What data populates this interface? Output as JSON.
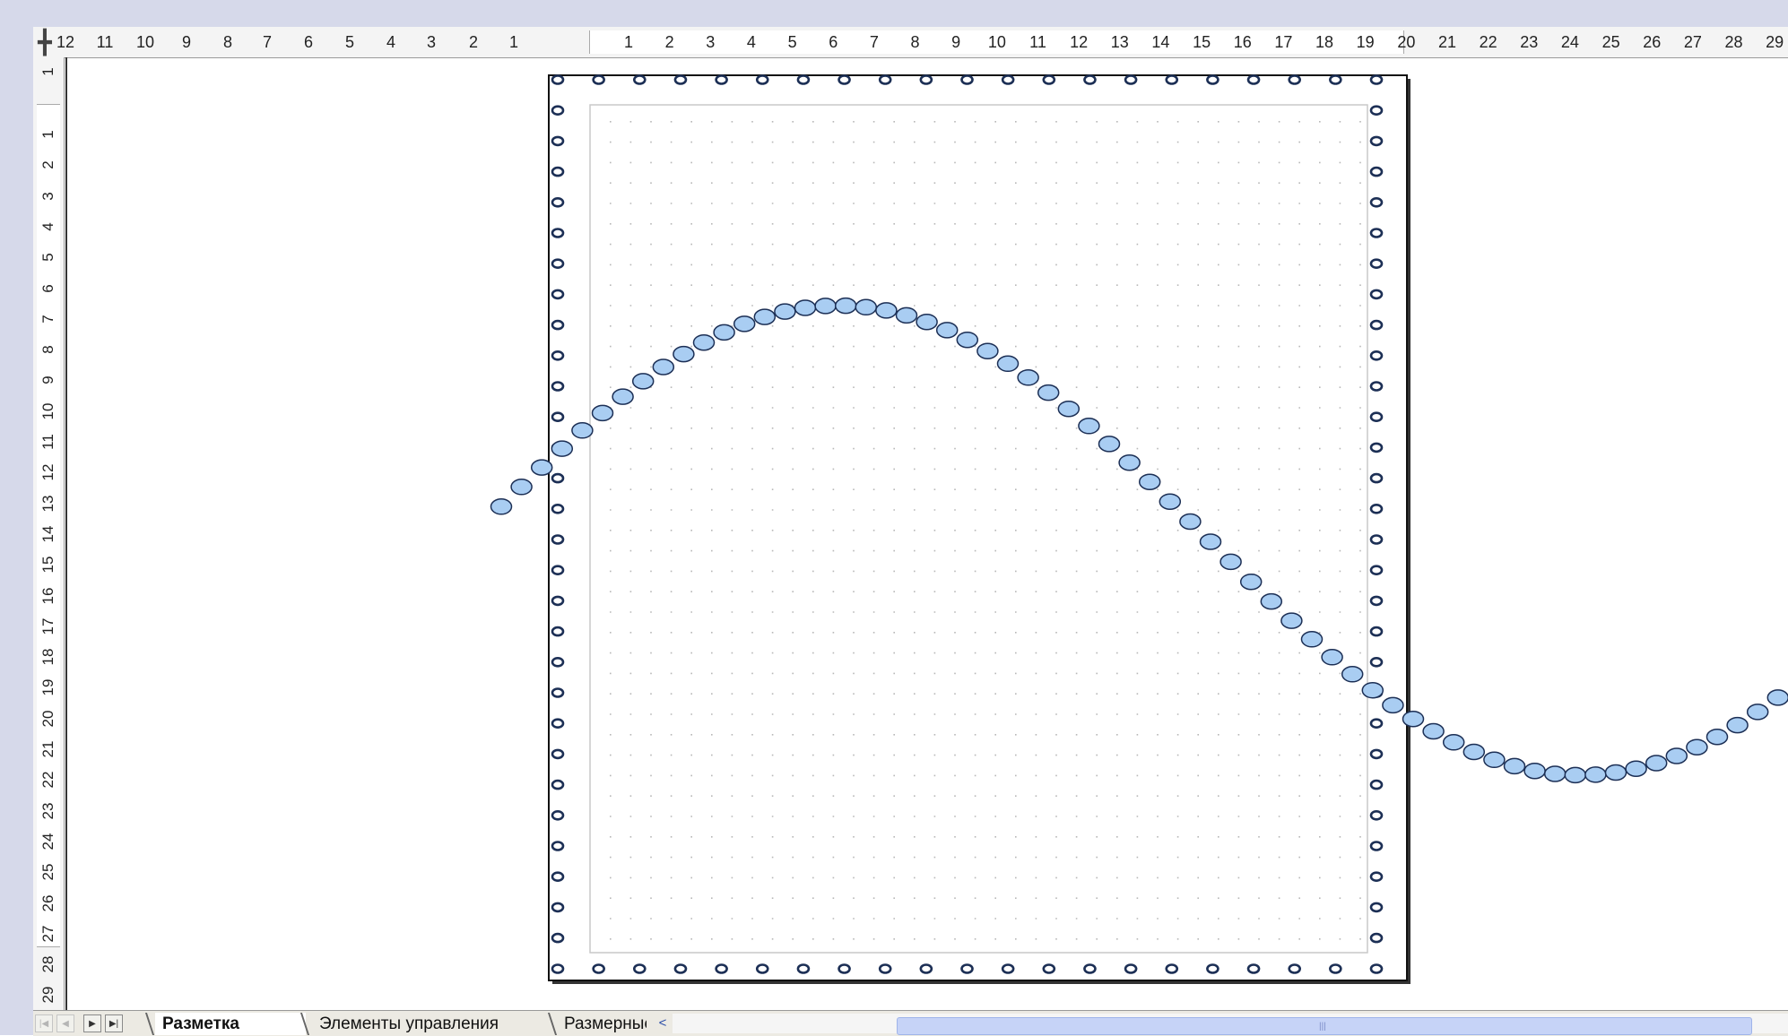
{
  "rulers": {
    "horizontal_left_labels": [
      "12",
      "11",
      "10",
      "9",
      "8",
      "7",
      "6",
      "5",
      "4",
      "3",
      "2",
      "1"
    ],
    "horizontal_right_labels": [
      "1",
      "2",
      "3",
      "4",
      "5",
      "6",
      "7",
      "8",
      "9",
      "10",
      "11",
      "12",
      "13",
      "14",
      "15",
      "16",
      "17",
      "18",
      "19",
      "20",
      "21",
      "22",
      "23",
      "24",
      "25",
      "26",
      "27",
      "28",
      "29"
    ],
    "vertical_top_label": "1",
    "vertical_labels": [
      "1",
      "2",
      "3",
      "4",
      "5",
      "6",
      "7",
      "8",
      "9",
      "10",
      "11",
      "12",
      "13",
      "14",
      "15",
      "16",
      "17",
      "18",
      "19",
      "20",
      "21",
      "22",
      "23",
      "24",
      "25",
      "26",
      "27",
      "28",
      "29"
    ],
    "corner_symbol": "╋"
  },
  "tabs": [
    {
      "label": "Разметка",
      "active": true
    },
    {
      "label": "Элементы управления",
      "active": false
    },
    {
      "label": "Размерные",
      "active": false
    }
  ],
  "nav_buttons": {
    "first": "|◀",
    "prev": "◀",
    "next": "▶",
    "last": "▶|"
  },
  "scrollbar": {
    "left_arrow": "<",
    "grip": "|||"
  },
  "colors": {
    "bead_fill": "#a9cdf2",
    "bead_stroke": "#1c2f55",
    "page_border": "#111111",
    "grid_dot": "#b8b8b8"
  },
  "drawing": {
    "shape": "sine-wave",
    "bead_count": 64
  }
}
